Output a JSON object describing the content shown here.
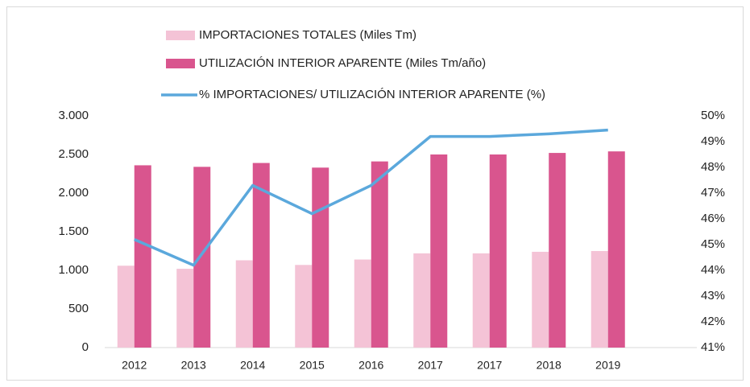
{
  "chart_data": {
    "type": "bar",
    "categories": [
      "2012",
      "2013",
      "2014",
      "2015",
      "2016",
      "2017",
      "2017",
      "2018",
      "2019",
      null
    ],
    "series": [
      {
        "name": "IMPORTACIONES TOTALES (Miles Tm)",
        "color": "#f4c3d6",
        "type": "bar",
        "values": [
          1060,
          1020,
          1130,
          1070,
          1140,
          1220,
          1220,
          1240,
          1250,
          null
        ]
      },
      {
        "name": "UTILIZACIÓN INTERIOR APARENTE (Miles Tm/año)",
        "color": "#d9558e",
        "type": "bar",
        "values": [
          2360,
          2340,
          2390,
          2330,
          2410,
          2500,
          2500,
          2520,
          2540,
          null
        ]
      },
      {
        "name": "% IMPORTACIONES/ UTILIZACIÓN INTERIOR APARENTE (%)",
        "color": "#5ba8dc",
        "type": "line",
        "axis": "y2",
        "values": [
          45.2,
          44.2,
          47.3,
          46.2,
          47.3,
          49.2,
          49.2,
          49.3,
          49.45,
          null
        ]
      }
    ],
    "ylim": [
      0,
      3000
    ],
    "yticks": [
      0,
      500,
      {
        "value": 1000,
        "label": "1.000"
      },
      {
        "value": 1500,
        "label": "1.500"
      },
      {
        "value": 2000,
        "label": "2.000"
      },
      {
        "value": 2500,
        "label": "2.500"
      },
      {
        "value": 3000,
        "label": "3.000"
      }
    ],
    "y2lim": [
      41,
      50
    ],
    "y2ticks": [
      {
        "value": 41,
        "label": "41%"
      },
      {
        "value": 42,
        "label": "42%"
      },
      {
        "value": 43,
        "label": "43%"
      },
      {
        "value": 44,
        "label": "44%"
      },
      {
        "value": 45,
        "label": "45%"
      },
      {
        "value": 46,
        "label": "46%"
      },
      {
        "value": 47,
        "label": "47%"
      },
      {
        "value": 48,
        "label": "48%"
      },
      {
        "value": 49,
        "label": "49%"
      },
      {
        "value": 50,
        "label": "50%"
      }
    ],
    "grid": false
  }
}
